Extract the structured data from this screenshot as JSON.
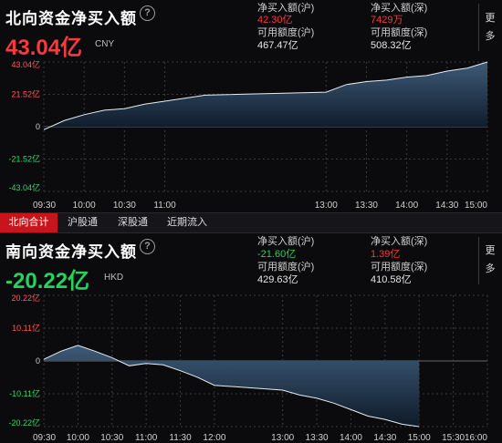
{
  "north": {
    "title": "北向资金净买入额",
    "value": "43.04亿",
    "currency": "CNY",
    "stats": [
      {
        "label": "净买入额(沪)",
        "value": "42.30亿",
        "color": "red"
      },
      {
        "label": "净买入额(深)",
        "value": "7429万",
        "color": "red"
      },
      {
        "label": "可用额度(沪)",
        "value": "467.47亿",
        "color": "white"
      },
      {
        "label": "可用额度(深)",
        "value": "508.32亿",
        "color": "white"
      }
    ],
    "more": "更多"
  },
  "tabs": [
    "北向合计",
    "沪股通",
    "深股通",
    "近期流入"
  ],
  "south": {
    "title": "南向资金净买入额",
    "value": "-20.22亿",
    "currency": "HKD",
    "stats": [
      {
        "label": "净买入额(沪)",
        "value": "-21.60亿",
        "color": "green"
      },
      {
        "label": "净买入额(深)",
        "value": "1.39亿",
        "color": "red"
      },
      {
        "label": "可用额度(沪)",
        "value": "429.63亿",
        "color": "white"
      },
      {
        "label": "可用额度(深)",
        "value": "410.58亿",
        "color": "white"
      }
    ],
    "more": "更多"
  },
  "colors": {
    "red": "#f53b3b",
    "green": "#22d35e",
    "line": "#e8edf2",
    "area_top": "#3e5a78",
    "area_bottom": "#0e1a28"
  },
  "chart_data": [
    {
      "type": "area",
      "title": "北向资金净买入额",
      "y_ticks": [
        "43.04亿",
        "21.52亿",
        "0",
        "-21.52亿",
        "-43.04亿"
      ],
      "ylim": [
        -43.04,
        43.04
      ],
      "x_ticks": [
        "09:30",
        "10:00",
        "10:30",
        "11:00",
        "13:00",
        "13:30",
        "14:00",
        "14:30",
        "15:00"
      ],
      "x": [
        "09:30",
        "09:45",
        "10:00",
        "10:15",
        "10:30",
        "10:45",
        "11:00",
        "11:15",
        "11:30",
        "13:00",
        "13:15",
        "13:30",
        "13:45",
        "14:00",
        "14:15",
        "14:30",
        "14:45",
        "15:00"
      ],
      "values": [
        -2,
        4,
        8,
        11,
        12,
        15,
        17,
        19,
        21,
        23,
        28,
        30,
        31,
        33,
        34,
        37,
        39,
        43.04
      ],
      "grid": true
    },
    {
      "type": "area",
      "title": "南向资金净买入额",
      "y_ticks": [
        "20.22亿",
        "10.11亿",
        "0",
        "-10.11亿",
        "-20.22亿"
      ],
      "ylim": [
        -20.22,
        20.22
      ],
      "x_ticks": [
        "09:30",
        "10:00",
        "10:30",
        "11:00",
        "11:30",
        "12:00",
        "13:00",
        "13:30",
        "14:00",
        "14:30",
        "15:00",
        "15:30",
        "16:00"
      ],
      "x": [
        "09:30",
        "09:45",
        "10:00",
        "10:15",
        "10:30",
        "10:45",
        "11:00",
        "11:15",
        "11:30",
        "11:45",
        "12:00",
        "13:00",
        "13:15",
        "13:30",
        "13:45",
        "14:00",
        "14:15",
        "14:30",
        "14:45",
        "15:00"
      ],
      "values": [
        0.5,
        3,
        4.8,
        3,
        1,
        -1.5,
        -0.8,
        -1.2,
        -3,
        -5,
        -7.5,
        -9,
        -10.5,
        -11.5,
        -13,
        -15,
        -17,
        -18,
        -19.5,
        -20.22
      ],
      "grid": true
    }
  ]
}
